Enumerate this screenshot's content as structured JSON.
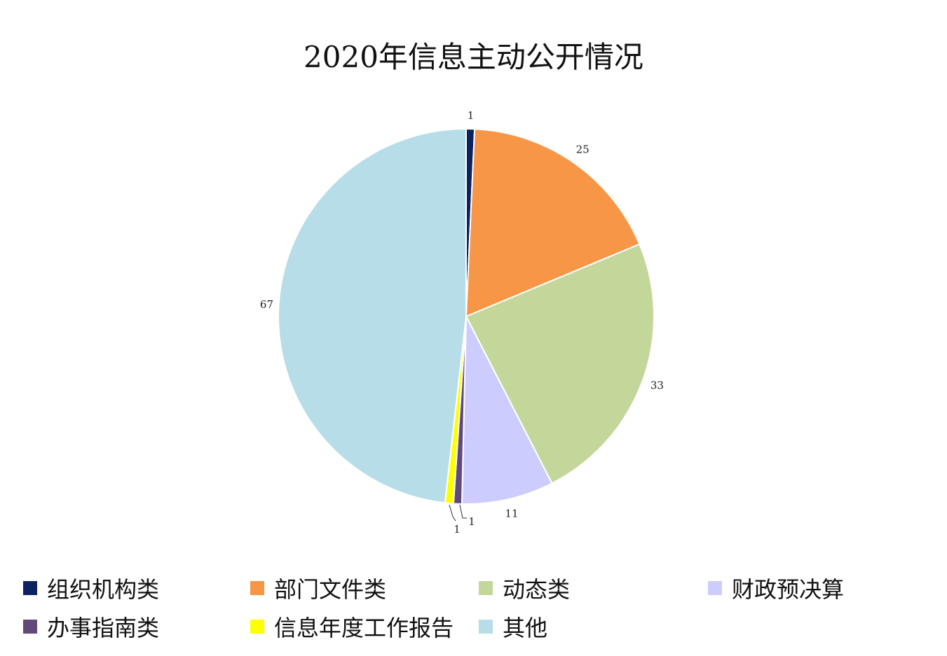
{
  "chart_data": {
    "type": "pie",
    "title": "2020年信息主动公开情况",
    "categories": [
      "组织机构类",
      "部门文件类",
      "动态类",
      "财政预决算",
      "办事指南类",
      "信息年度工作报告",
      "其他"
    ],
    "values": [
      1,
      25,
      33,
      11,
      1,
      1,
      67
    ],
    "colors": [
      "#0d2260",
      "#f79646",
      "#c4d79b",
      "#ccccff",
      "#604a7b",
      "#ffff00",
      "#b7dde8"
    ],
    "data_labels": [
      "1",
      "25",
      "33",
      "11",
      "1",
      "1",
      "67"
    ],
    "legend_position": "bottom",
    "start_angle": "top, clockwise"
  }
}
